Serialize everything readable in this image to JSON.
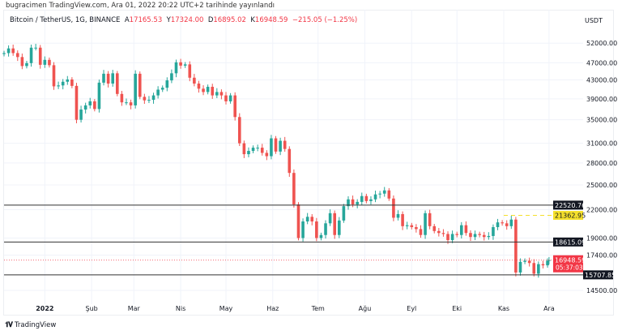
{
  "header": {
    "published": "bugracimen TradingView.com, Ara 01, 2022 20:22 UTC+2 tarihinde yayınlandı"
  },
  "legend": {
    "symbol": "Bitcoin / TetherUS, 1G, BINANCE",
    "open_label": "A",
    "open": "17165.53",
    "high_label": "Y",
    "high": "17324.00",
    "low_label": "D",
    "low": "16895.02",
    "close_label": "K",
    "close": "16948.59",
    "change": "−215.05 (−1.25%)"
  },
  "footer": {
    "brand": "TradingView",
    "logo_text": "TV"
  },
  "colors": {
    "up": "#26a69a",
    "down": "#ef5350",
    "grid": "#f0f3fa",
    "level": "#333333",
    "yellow": "#f5e02c",
    "price_label": "#f23645"
  },
  "chart_data": {
    "type": "candlestick",
    "title": "",
    "yscale": "log",
    "ylim": [
      13500,
      61800
    ],
    "currency": "USDT",
    "grid": true,
    "y_ticks": [
      "52000.00",
      "47000.00",
      "43000.00",
      "39000.00",
      "35000.00",
      "31000.00",
      "28000.00",
      "25000.00",
      "22000.00",
      "19000.00",
      "17400.00",
      "14500.00"
    ],
    "x_ticks": [
      {
        "label": "2022",
        "date": "2022-01-01",
        "bold": true
      },
      {
        "label": "Şub",
        "date": "2022-02-01"
      },
      {
        "label": "Mar",
        "date": "2022-03-01"
      },
      {
        "label": "Nis",
        "date": "2022-04-01"
      },
      {
        "label": "May",
        "date": "2022-05-01"
      },
      {
        "label": "Haz",
        "date": "2022-06-01"
      },
      {
        "label": "Tem",
        "date": "2022-07-01"
      },
      {
        "label": "Ağu",
        "date": "2022-08-01"
      },
      {
        "label": "Eyl",
        "date": "2022-09-01"
      },
      {
        "label": "Eki",
        "date": "2022-10-01"
      },
      {
        "label": "Kas",
        "date": "2022-11-01"
      },
      {
        "label": "Ara",
        "date": "2022-12-01"
      }
    ],
    "levels": [
      {
        "price": "22520.76",
        "style": "solid",
        "color": "#333333"
      },
      {
        "price": "21362.95",
        "style": "dashed",
        "color": "#f5e02c",
        "from_date": "2022-11-01"
      },
      {
        "price": "18615.09",
        "style": "solid",
        "color": "#333333"
      },
      {
        "price": "15707.85",
        "style": "solid",
        "color": "#333333"
      }
    ],
    "last_price": {
      "price": "16948.59",
      "countdown": "05:37:03"
    },
    "first_date": "2021-12-05",
    "dates": [
      "2021-12-05",
      "2021-12-08",
      "2021-12-11",
      "2021-12-14",
      "2021-12-17",
      "2021-12-20",
      "2021-12-23",
      "2021-12-26",
      "2021-12-29",
      "2022-01-01",
      "2022-01-04",
      "2022-01-07",
      "2022-01-10",
      "2022-01-13",
      "2022-01-16",
      "2022-01-19",
      "2022-01-22",
      "2022-01-25",
      "2022-01-28",
      "2022-01-31",
      "2022-02-03",
      "2022-02-06",
      "2022-02-09",
      "2022-02-12",
      "2022-02-15",
      "2022-02-18",
      "2022-02-21",
      "2022-02-24",
      "2022-02-27",
      "2022-03-02",
      "2022-03-05",
      "2022-03-08",
      "2022-03-11",
      "2022-03-14",
      "2022-03-17",
      "2022-03-20",
      "2022-03-23",
      "2022-03-26",
      "2022-03-29",
      "2022-04-01",
      "2022-04-04",
      "2022-04-07",
      "2022-04-10",
      "2022-04-13",
      "2022-04-16",
      "2022-04-19",
      "2022-04-22",
      "2022-04-25",
      "2022-04-28",
      "2022-05-01",
      "2022-05-04",
      "2022-05-07",
      "2022-05-10",
      "2022-05-13",
      "2022-05-16",
      "2022-05-19",
      "2022-05-22",
      "2022-05-25",
      "2022-05-28",
      "2022-05-31",
      "2022-06-03",
      "2022-06-06",
      "2022-06-09",
      "2022-06-12",
      "2022-06-15",
      "2022-06-18",
      "2022-06-21",
      "2022-06-24",
      "2022-06-27",
      "2022-06-30",
      "2022-07-03",
      "2022-07-06",
      "2022-07-09",
      "2022-07-12",
      "2022-07-15",
      "2022-07-18",
      "2022-07-21",
      "2022-07-24",
      "2022-07-27",
      "2022-07-30",
      "2022-08-02",
      "2022-08-05",
      "2022-08-08",
      "2022-08-11",
      "2022-08-14",
      "2022-08-17",
      "2022-08-20",
      "2022-08-23",
      "2022-08-26",
      "2022-08-29",
      "2022-09-01",
      "2022-09-04",
      "2022-09-07",
      "2022-09-10",
      "2022-09-13",
      "2022-09-16",
      "2022-09-19",
      "2022-09-22",
      "2022-09-25",
      "2022-09-28",
      "2022-10-01",
      "2022-10-04",
      "2022-10-07",
      "2022-10-10",
      "2022-10-13",
      "2022-10-16",
      "2022-10-19",
      "2022-10-22",
      "2022-10-25",
      "2022-10-28",
      "2022-10-31",
      "2022-11-03",
      "2022-11-06",
      "2022-11-09",
      "2022-11-12",
      "2022-11-15",
      "2022-11-18",
      "2022-11-21",
      "2022-11-24",
      "2022-11-27",
      "2022-11-30",
      "2022-12-01"
    ],
    "closes": [
      49400,
      50600,
      49400,
      48400,
      46200,
      46900,
      50800,
      50800,
      46500,
      47700,
      46400,
      41600,
      41800,
      42600,
      43100,
      41700,
      35000,
      36900,
      37700,
      38500,
      37000,
      42400,
      44400,
      42200,
      44500,
      40000,
      38300,
      38300,
      37700,
      44400,
      39400,
      38700,
      38800,
      39700,
      40900,
      41300,
      42900,
      44500,
      47100,
      46300,
      46600,
      43500,
      42200,
      41100,
      40400,
      41500,
      39700,
      40400,
      39700,
      38500,
      39700,
      35500,
      31000,
      29300,
      29800,
      30300,
      30300,
      29500,
      29000,
      31800,
      29700,
      31400,
      30100,
      26600,
      22600,
      19000,
      20700,
      21200,
      20700,
      19000,
      19300,
      20500,
      21600,
      19300,
      20800,
      22400,
      23200,
      22600,
      22900,
      23600,
      23000,
      23200,
      23800,
      23900,
      24300,
      23300,
      21100,
      21500,
      20200,
      20300,
      20100,
      19900,
      19300,
      21600,
      20200,
      19700,
      19500,
      19400,
      18800,
      19400,
      19300,
      20300,
      19500,
      19100,
      19400,
      19300,
      19100,
      19200,
      20100,
      20600,
      20500,
      20200,
      20900,
      15900,
      16800,
      16900,
      16700,
      15800,
      16600,
      16500,
      16900,
      16948.59
    ]
  }
}
